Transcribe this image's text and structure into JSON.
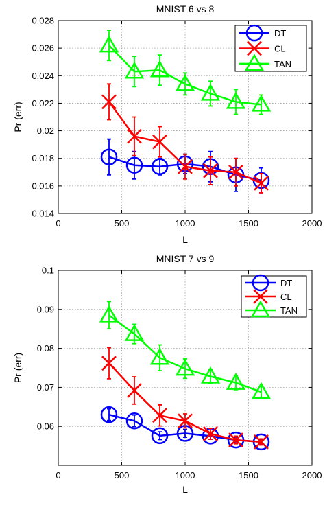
{
  "chart_data": [
    {
      "type": "line",
      "title": "MNIST 6 vs 8",
      "xlabel": "L",
      "ylabel": "Pr (err)",
      "xlim": [
        0,
        2000
      ],
      "ylim": [
        0.014,
        0.028
      ],
      "xticks": [
        0,
        500,
        1000,
        1500,
        2000
      ],
      "yticks": [
        0.014,
        0.016,
        0.018,
        0.02,
        0.022,
        0.024,
        0.026,
        0.028
      ],
      "xtick_labels": [
        "0",
        "500",
        "1000",
        "1500",
        "2000"
      ],
      "ytick_labels": [
        "0.014",
        "0.016",
        "0.018",
        "0.02",
        "0.022",
        "0.024",
        "0.026",
        "0.028"
      ],
      "grid": true,
      "legend_position": "top-right",
      "x": [
        400,
        600,
        800,
        1000,
        1200,
        1400,
        1600
      ],
      "series": [
        {
          "name": "DT",
          "color": "#0000ff",
          "marker": "circle",
          "values": [
            0.0181,
            0.0175,
            0.0174,
            0.0176,
            0.0174,
            0.0168,
            0.0164
          ],
          "errors": [
            0.0013,
            0.001,
            0.0006,
            0.0007,
            0.0011,
            0.0012,
            0.0009
          ]
        },
        {
          "name": "CL",
          "color": "#ff0000",
          "marker": "x",
          "values": [
            0.0221,
            0.0196,
            0.0192,
            0.0174,
            0.0171,
            0.017,
            0.0162
          ],
          "errors": [
            0.0013,
            0.0014,
            0.0011,
            0.0009,
            0.001,
            0.001,
            0.0007
          ]
        },
        {
          "name": "TAN",
          "color": "#00ff00",
          "marker": "triangle",
          "values": [
            0.0262,
            0.0243,
            0.0244,
            0.0234,
            0.0227,
            0.0221,
            0.0219
          ],
          "errors": [
            0.0011,
            0.0011,
            0.0011,
            0.0008,
            0.0009,
            0.0009,
            0.0007
          ]
        }
      ]
    },
    {
      "type": "line",
      "title": "MNIST 7 vs 9",
      "xlabel": "L",
      "ylabel": "Pr (err)",
      "xlim": [
        0,
        2000
      ],
      "ylim": [
        0.05,
        0.1
      ],
      "xticks": [
        0,
        500,
        1000,
        1500,
        2000
      ],
      "yticks": [
        0.06,
        0.07,
        0.08,
        0.09,
        0.1
      ],
      "xtick_labels": [
        "0",
        "500",
        "1000",
        "1500",
        "2000"
      ],
      "ytick_labels": [
        "0.06",
        "0.07",
        "0.08",
        "0.09",
        "0.1"
      ],
      "grid": true,
      "legend_position": "top-right",
      "x": [
        400,
        600,
        800,
        1000,
        1200,
        1400,
        1600
      ],
      "series": [
        {
          "name": "DT",
          "color": "#0000ff",
          "marker": "circle",
          "values": [
            0.063,
            0.0614,
            0.0576,
            0.0582,
            0.0575,
            0.0565,
            0.056
          ],
          "errors": [
            0.0015,
            0.0015,
            0.001,
            0.001,
            0.0008,
            0.0006,
            0.0006
          ]
        },
        {
          "name": "CL",
          "color": "#ff0000",
          "marker": "x",
          "values": [
            0.0762,
            0.0692,
            0.0628,
            0.0614,
            0.0581,
            0.0565,
            0.056
          ],
          "errors": [
            0.004,
            0.0035,
            0.0027,
            0.0018,
            0.0014,
            0.001,
            0.0008
          ]
        },
        {
          "name": "TAN",
          "color": "#00ff00",
          "marker": "triangle",
          "values": [
            0.0885,
            0.0837,
            0.0776,
            0.0748,
            0.0728,
            0.0712,
            0.0688
          ],
          "errors": [
            0.0035,
            0.0025,
            0.0033,
            0.0025,
            0.0017,
            0.0018,
            0.0015
          ]
        }
      ]
    }
  ]
}
